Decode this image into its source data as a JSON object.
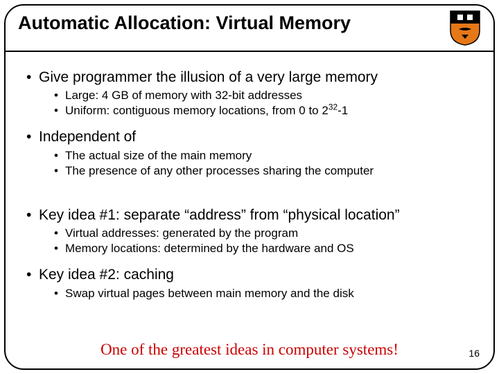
{
  "title": "Automatic Allocation: Virtual Memory",
  "shield": {
    "top_fill": "#000000",
    "bottom_fill": "#e67817",
    "outline": "#000000"
  },
  "bullets": [
    {
      "text": "Give programmer the illusion of a very large memory",
      "sub": [
        "Large: 4 GB of memory with 32-bit addresses",
        "Uniform: contiguous memory locations, from 0 to 2^{32}-1"
      ]
    },
    {
      "text": "Independent of",
      "sub": [
        "The actual size of the main memory",
        "The presence of any other processes sharing the computer"
      ]
    },
    {
      "text": "Key idea #1: separate “address” from “physical location”",
      "extra_gap": true,
      "sub": [
        "Virtual addresses: generated by the program",
        "Memory locations: determined by the hardware and OS"
      ]
    },
    {
      "text": "Key idea #2: caching",
      "sub": [
        "Swap virtual pages between main memory and the disk"
      ]
    }
  ],
  "footer": "One of the greatest ideas in computer systems!",
  "footer_color": "#cc0000",
  "page_number": "16"
}
